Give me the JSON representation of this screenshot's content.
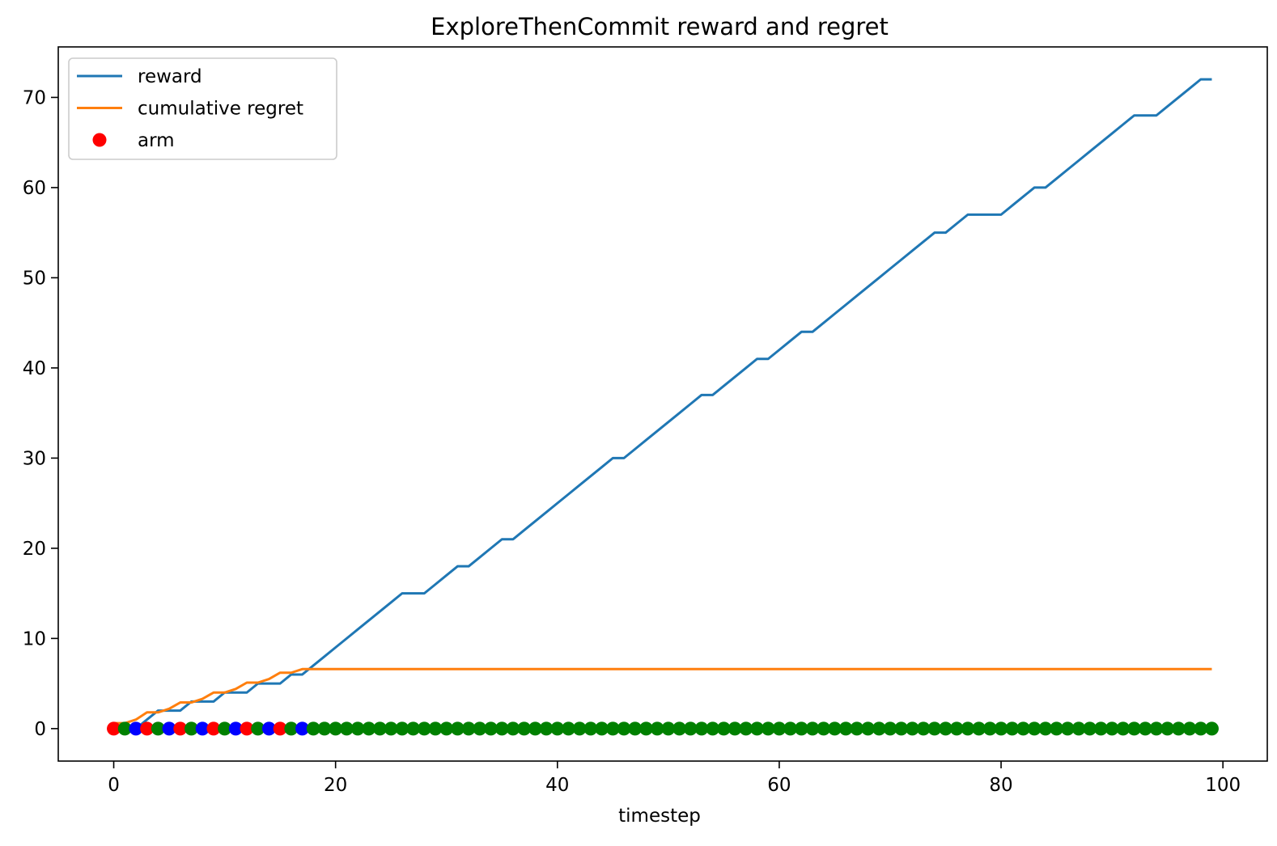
{
  "chart_data": {
    "type": "line",
    "title": "ExploreThenCommit reward and regret",
    "xlabel": "timestep",
    "ylabel": "",
    "xlim": [
      -5,
      104
    ],
    "ylim": [
      -3.6,
      75.6
    ],
    "x_ticks": [
      0,
      20,
      40,
      60,
      80,
      100
    ],
    "y_ticks": [
      0,
      10,
      20,
      30,
      40,
      50,
      60,
      70
    ],
    "grid": false,
    "legend_position": "top-left",
    "legend": [
      {
        "label": "reward",
        "kind": "line",
        "color": "#1f77b4"
      },
      {
        "label": "cumulative regret",
        "kind": "line",
        "color": "#ff7f0e"
      },
      {
        "label": "arm",
        "kind": "marker",
        "color": "#ff0000"
      }
    ],
    "series": [
      {
        "name": "reward",
        "color": "#1f77b4",
        "x": [
          0,
          1,
          2,
          3,
          4,
          5,
          6,
          7,
          8,
          9,
          10,
          11,
          12,
          13,
          14,
          15,
          16,
          17,
          18,
          19,
          20,
          21,
          22,
          23,
          24,
          25,
          26,
          27,
          28,
          29,
          30,
          31,
          32,
          33,
          34,
          35,
          36,
          37,
          38,
          39,
          40,
          41,
          42,
          43,
          44,
          45,
          46,
          47,
          48,
          49,
          50,
          51,
          52,
          53,
          54,
          55,
          56,
          57,
          58,
          59,
          60,
          61,
          62,
          63,
          64,
          65,
          66,
          67,
          68,
          69,
          70,
          71,
          72,
          73,
          74,
          75,
          76,
          77,
          78,
          79,
          80,
          81,
          82,
          83,
          84,
          85,
          86,
          87,
          88,
          89,
          90,
          91,
          92,
          93,
          94,
          95,
          96,
          97,
          98,
          99
        ],
        "y": [
          0,
          0,
          0,
          1,
          2,
          2,
          2,
          3,
          3,
          3,
          4,
          4,
          4,
          5,
          5,
          5,
          6,
          6,
          7,
          8,
          9,
          10,
          11,
          12,
          13,
          14,
          15,
          15,
          15,
          16,
          17,
          18,
          18,
          19,
          20,
          21,
          21,
          22,
          23,
          24,
          25,
          26,
          27,
          28,
          29,
          30,
          30,
          31,
          32,
          33,
          34,
          35,
          36,
          37,
          37,
          38,
          39,
          40,
          41,
          41,
          42,
          43,
          44,
          44,
          45,
          46,
          47,
          48,
          49,
          50,
          51,
          52,
          53,
          54,
          55,
          55,
          56,
          57,
          57,
          57,
          57,
          58,
          59,
          60,
          60,
          61,
          62,
          63,
          64,
          65,
          66,
          67,
          68,
          68,
          68,
          69,
          70,
          71,
          72,
          72
        ]
      },
      {
        "name": "cumulative regret",
        "color": "#ff7f0e",
        "x": [
          0,
          1,
          2,
          3,
          4,
          5,
          6,
          7,
          8,
          9,
          10,
          11,
          12,
          13,
          14,
          15,
          16,
          17,
          18,
          99
        ],
        "y": [
          0.6,
          0.6,
          1.0,
          1.8,
          1.8,
          2.2,
          2.9,
          2.9,
          3.3,
          4.0,
          4.0,
          4.4,
          5.1,
          5.1,
          5.5,
          6.2,
          6.2,
          6.6,
          6.6,
          6.6
        ]
      }
    ],
    "scatter": {
      "name": "arm",
      "y": 0,
      "colors": {
        "0": "#ff0000",
        "1": "#008000",
        "2": "#0000ff"
      },
      "arms": [
        0,
        1,
        2,
        0,
        1,
        2,
        0,
        1,
        2,
        0,
        1,
        2,
        0,
        1,
        2,
        0,
        1,
        2,
        1,
        1,
        1,
        1,
        1,
        1,
        1,
        1,
        1,
        1,
        1,
        1,
        1,
        1,
        1,
        1,
        1,
        1,
        1,
        1,
        1,
        1,
        1,
        1,
        1,
        1,
        1,
        1,
        1,
        1,
        1,
        1,
        1,
        1,
        1,
        1,
        1,
        1,
        1,
        1,
        1,
        1,
        1,
        1,
        1,
        1,
        1,
        1,
        1,
        1,
        1,
        1,
        1,
        1,
        1,
        1,
        1,
        1,
        1,
        1,
        1,
        1,
        1,
        1,
        1,
        1,
        1,
        1,
        1,
        1,
        1,
        1,
        1,
        1,
        1,
        1,
        1,
        1,
        1,
        1,
        1,
        1
      ]
    }
  }
}
